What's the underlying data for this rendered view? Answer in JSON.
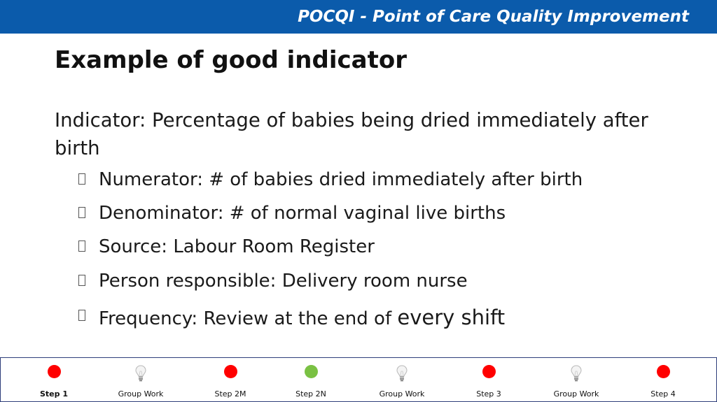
{
  "header": {
    "title": "POCQI - Point of Care Quality Improvement"
  },
  "slide": {
    "title": "Example of good indicator",
    "indicator": "Indicator: Percentage of babies being dried immediately after birth",
    "bullets": [
      {
        "text": "Numerator: # of babies dried immediately after birth"
      },
      {
        "text": "Denominator: # of normal vaginal live births"
      },
      {
        "text": "Source: Labour Room Register"
      },
      {
        "text": "Person responsible: Delivery room nurse"
      },
      {
        "text": "Frequency: Review at the end of",
        "emphasis": "every shift"
      }
    ]
  },
  "steps": [
    {
      "label": "Step 1",
      "icon": "red-dot-icon",
      "color": "#ff0000",
      "active": true
    },
    {
      "label": "Group Work",
      "icon": "lightbulb-icon"
    },
    {
      "label": "Step 2M",
      "icon": "red-dot-icon",
      "color": "#ff0000"
    },
    {
      "label": "Step 2N",
      "icon": "green-dot-icon",
      "color": "#7ac143"
    },
    {
      "label": "Group Work",
      "icon": "lightbulb-icon"
    },
    {
      "label": "Step 3",
      "icon": "red-dot-icon",
      "color": "#ff0000"
    },
    {
      "label": "Group Work",
      "icon": "lightbulb-icon"
    },
    {
      "label": "Step 4",
      "icon": "red-dot-icon",
      "color": "#ff0000"
    }
  ]
}
